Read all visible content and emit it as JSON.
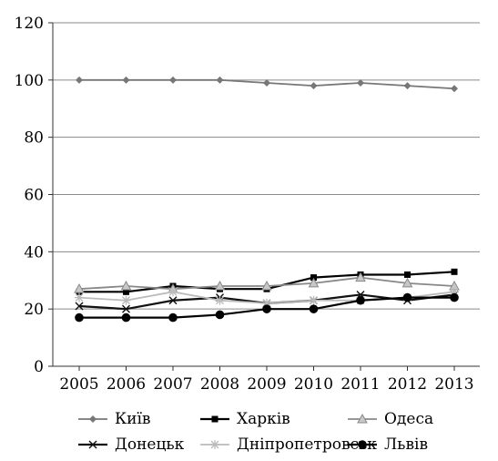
{
  "chart_data": {
    "type": "line",
    "title": "",
    "xlabel": "",
    "ylabel": "",
    "categories": [
      "2005",
      "2006",
      "2007",
      "2008",
      "2009",
      "2010",
      "2011",
      "2012",
      "2013"
    ],
    "ylim": [
      0,
      120
    ],
    "yticks": [
      "0",
      "20",
      "40",
      "60",
      "80",
      "100",
      "120"
    ],
    "grid": "horizontal",
    "legend_position": "bottom",
    "series": [
      {
        "name": "Київ",
        "values": [
          100,
          100,
          100,
          100,
          99,
          98,
          99,
          98,
          97
        ],
        "color": "#777777",
        "marker": "diamond"
      },
      {
        "name": "Харків",
        "values": [
          26,
          26,
          28,
          27,
          27,
          31,
          32,
          32,
          33
        ],
        "color": "#000000",
        "marker": "square"
      },
      {
        "name": "Одеса",
        "values": [
          27,
          28,
          27,
          28,
          28,
          29,
          31,
          29,
          28
        ],
        "color": "#888888",
        "marker": "triangle"
      },
      {
        "name": "Донецьк",
        "values": [
          21,
          20,
          23,
          24,
          22,
          23,
          25,
          23,
          25
        ],
        "color": "#111111",
        "marker": "x"
      },
      {
        "name": "Дніпропетровськ",
        "values": [
          24,
          23,
          26,
          23,
          22,
          23,
          23,
          24,
          26
        ],
        "color": "#bbbbbb",
        "marker": "asterisk"
      },
      {
        "name": "Львів",
        "values": [
          17,
          17,
          17,
          18,
          20,
          20,
          23,
          24,
          24
        ],
        "color": "#000000",
        "marker": "circle"
      }
    ]
  }
}
